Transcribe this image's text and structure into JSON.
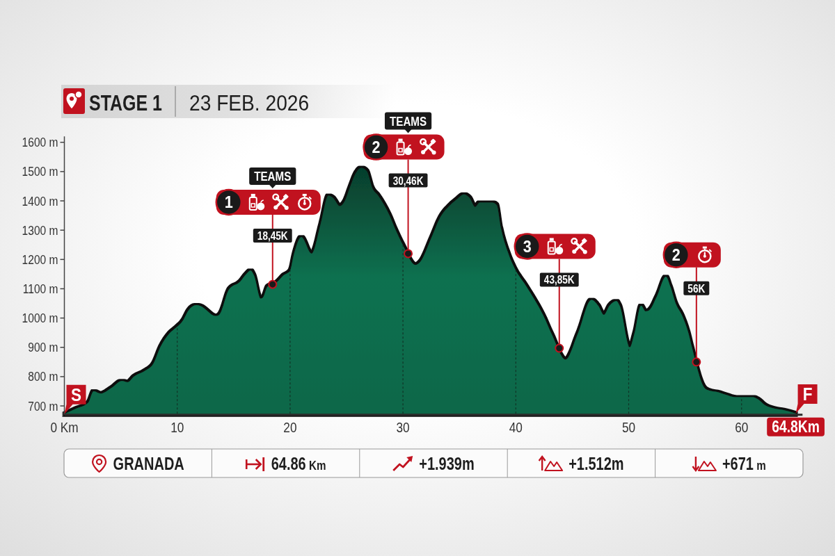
{
  "chart_data": {
    "type": "area",
    "title": "STAGE 1",
    "subtitle": "23 FEB. 2026",
    "x": [
      0,
      1.0,
      2.1,
      2.6,
      3.2,
      4.2,
      5.1,
      5.6,
      6.2,
      7.2,
      7.9,
      8.5,
      9.3,
      9.9,
      10.5,
      11.0,
      11.7,
      12.0,
      13.4,
      13.7,
      14.6,
      15.6,
      16.1,
      16.5,
      16.8,
      17.4,
      17.6,
      18.0,
      18.8,
      19.4,
      20.0,
      20.3,
      21.0,
      21.9,
      22.7,
      23.4,
      23.8,
      24.4,
      24.8,
      25.3,
      25.8,
      26.3,
      26.8,
      27.3,
      27.8,
      28.8,
      29.4,
      30.0,
      31.1,
      31.5,
      32.5,
      33.3,
      34.2,
      34.8,
      35.4,
      35.9,
      36.4,
      36.8,
      37.9,
      38.3,
      38.7,
      39.3,
      39.9,
      40.7,
      41.6,
      42.4,
      43.2,
      44.4,
      45.5,
      46.7,
      47.3,
      47.8,
      48.3,
      48.9,
      49.2,
      50.1,
      50.5,
      51.1,
      51.5,
      51.8,
      52.5,
      53.3,
      53.7,
      54.2,
      54.7,
      55.3,
      55.6,
      56.7,
      57.0,
      58.0,
      58.6,
      59.4,
      61.0,
      61.4,
      62.1,
      62.7,
      63.7,
      64.8
    ],
    "values": [
      672,
      690,
      710,
      750,
      742,
      762,
      785,
      781,
      801,
      821,
      845,
      900,
      947,
      967,
      991,
      1026,
      1044,
      1042,
      1007,
      1010,
      1098,
      1125,
      1149,
      1162,
      1145,
      1066,
      1070,
      1107,
      1121,
      1145,
      1161,
      1210,
      1276,
      1220,
      1319,
      1418,
      1410,
      1382,
      1396,
      1446,
      1493,
      1513,
      1501,
      1442,
      1418,
      1351,
      1296,
      1248,
      1181,
      1190,
      1272,
      1343,
      1386,
      1406,
      1422,
      1410,
      1379,
      1394,
      1394,
      1386,
      1303,
      1224,
      1169,
      1121,
      1066,
      1011,
      943,
      858,
      947,
      1062,
      1042,
      1011,
      1042,
      1058,
      1042,
      900,
      945,
      1042,
      1023,
      1026,
      1074,
      1141,
      1106,
      1046,
      1011,
      947,
      900,
      762,
      754,
      746,
      738,
      730,
      730,
      724,
      702,
      693,
      686,
      674
    ],
    "color": "#0b7150",
    "xlim": [
      0,
      65.4
    ],
    "ylim": [
      670,
      1620
    ],
    "xticks": [
      {
        "value": 0,
        "label": "0 Km"
      },
      10,
      20,
      30,
      40,
      50,
      60,
      {
        "value": 64.8,
        "label": "64.8Km"
      }
    ],
    "yticks": [
      {
        "value": 700,
        "label": "700 m"
      },
      {
        "value": 800,
        "label": "800 m"
      },
      {
        "value": 900,
        "label": "900 m"
      },
      {
        "value": 1000,
        "label": "1000 m"
      },
      {
        "value": 1100,
        "label": "1100 m"
      },
      {
        "value": 1200,
        "label": "1200 m"
      },
      {
        "value": 1300,
        "label": "1300 m"
      },
      {
        "value": 1400,
        "label": "1400 m"
      },
      {
        "value": 1500,
        "label": "1500 m"
      },
      {
        "value": 1600,
        "label": "1600 m"
      }
    ],
    "grid": "x",
    "annotations": [
      {
        "text": "S",
        "x": 0,
        "y": 672
      },
      "TEAMS",
      "1",
      {
        "text": "18,45K",
        "x": 18.45,
        "y": 1115
      },
      "TEAMS",
      "2",
      {
        "text": "30,46K",
        "x": 30.46,
        "y": 1220
      },
      "3",
      {
        "text": "43,85K",
        "x": 43.85,
        "y": 897
      },
      "2",
      {
        "text": "56K",
        "x": 56,
        "y": 850
      },
      {
        "text": "F",
        "x": 64.8,
        "y": 674
      },
      "GRANADA",
      "64.86 Km",
      "+1.939m",
      "+1.512m",
      "+671 m"
    ]
  }
}
